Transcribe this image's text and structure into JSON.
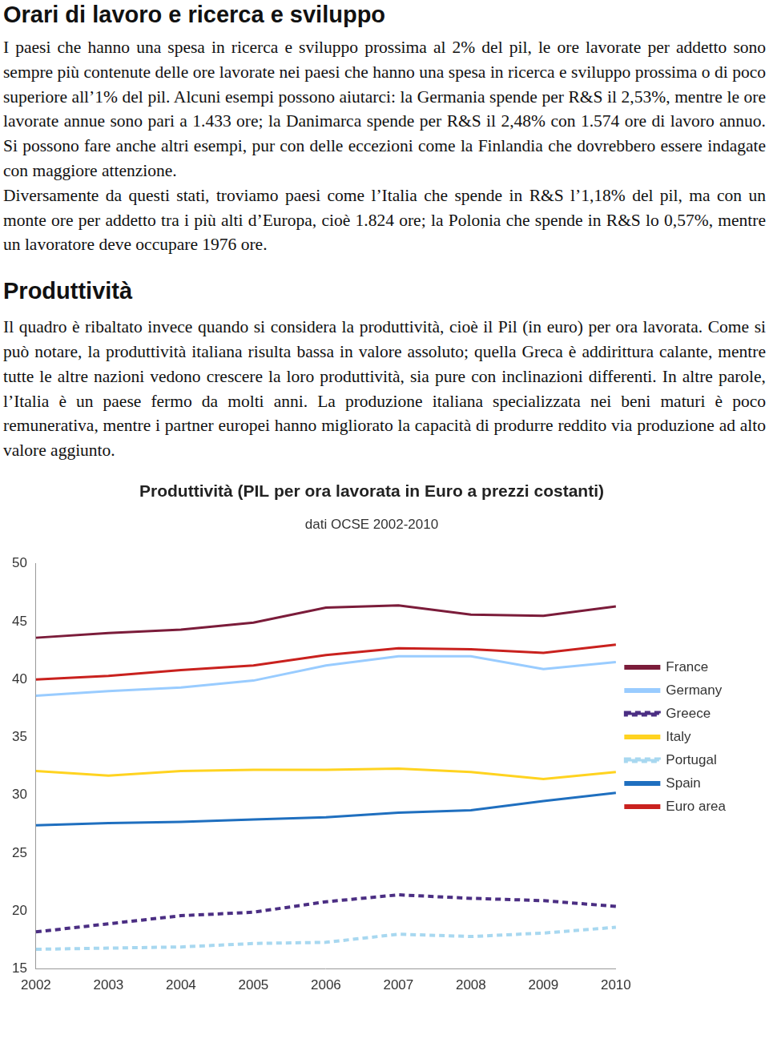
{
  "header": {
    "title": "Orari di lavoro e ricerca e sviluppo"
  },
  "sections": [
    {
      "title": null,
      "paragraphs": [
        "I paesi che hanno una spesa in ricerca e sviluppo prossima al 2% del pil, le ore lavorate per addetto sono sempre più contenute delle ore lavorate nei paesi che hanno una spesa in ricerca e sviluppo prossima o di poco superiore all’1% del pil. Alcuni esempi possono aiutarci: la Germania spende per R&S il 2,53%, mentre le ore lavorate annue sono pari a 1.433 ore; la Danimarca spende per R&S il 2,48% con 1.574 ore di lavoro annuo. Si possono fare anche altri esempi, pur con delle eccezioni come la Finlandia che dovrebbero essere indagate con maggiore attenzione.",
        "Diversamente da questi stati, troviamo paesi come l’Italia che spende in R&S l’1,18% del pil, ma con un monte ore per addetto tra i più alti d’Europa, cioè 1.824 ore; la Polonia che spende in R&S lo 0,57%, mentre un lavoratore deve occupare 1976 ore."
      ]
    },
    {
      "title": "Produttività",
      "paragraphs": [
        "Il quadro è ribaltato invece quando si considera la produttività, cioè il Pil (in euro) per ora lavorata. Come si può notare, la produttività italiana risulta bassa in valore assoluto; quella Greca è addirittura calante, mentre tutte le altre nazioni vedono crescere la loro produttività, sia pure con inclinazioni differenti. In altre parole, l’Italia è un paese fermo da molti anni. La produzione italiana specializzata nei beni maturi è poco remunerativa, mentre i partner europei hanno migliorato la capacità di produrre reddito via produzione ad alto valore aggiunto."
      ]
    }
  ],
  "chart_data": {
    "type": "line",
    "title": "Produttività (PIL per ora lavorata in Euro a prezzi costanti)",
    "subtitle": "dati OCSE 2002-2010",
    "categories": [
      "2002",
      "2003",
      "2004",
      "2005",
      "2006",
      "2007",
      "2008",
      "2009",
      "2010"
    ],
    "series": [
      {
        "name": "France",
        "color": "#7b1c3a",
        "line_style": "solid",
        "values": [
          43.6,
          44.0,
          44.3,
          44.9,
          46.2,
          46.4,
          45.6,
          45.5,
          46.3
        ]
      },
      {
        "name": "Germany",
        "color": "#99ccff",
        "line_style": "solid",
        "values": [
          38.6,
          39.0,
          39.3,
          39.9,
          41.2,
          42.0,
          42.0,
          40.9,
          41.5
        ]
      },
      {
        "name": "Greece",
        "color": "#4b2e83",
        "line_style": "dashed",
        "values": [
          18.2,
          18.9,
          19.6,
          19.9,
          20.8,
          21.4,
          21.1,
          20.9,
          20.4
        ]
      },
      {
        "name": "Italy",
        "color": "#ffd320",
        "line_style": "solid",
        "values": [
          32.1,
          31.7,
          32.1,
          32.2,
          32.2,
          32.3,
          32.0,
          31.4,
          32.0
        ]
      },
      {
        "name": "Portugal",
        "color": "#a8d8f0",
        "line_style": "dashed",
        "values": [
          16.7,
          16.8,
          16.9,
          17.2,
          17.3,
          18.0,
          17.8,
          18.1,
          18.6
        ]
      },
      {
        "name": "Spain",
        "color": "#1f6fbf",
        "line_style": "solid",
        "values": [
          27.4,
          27.6,
          27.7,
          27.9,
          28.1,
          28.5,
          28.7,
          29.5,
          30.2
        ]
      },
      {
        "name": "Euro area",
        "color": "#c9211e",
        "line_style": "solid",
        "values": [
          40.0,
          40.3,
          40.8,
          41.2,
          42.1,
          42.7,
          42.6,
          42.3,
          43.0
        ]
      }
    ],
    "ylim": [
      15,
      50
    ],
    "yticks": [
      15,
      20,
      25,
      30,
      35,
      40,
      45,
      50
    ],
    "grid": false,
    "legend": "right"
  }
}
